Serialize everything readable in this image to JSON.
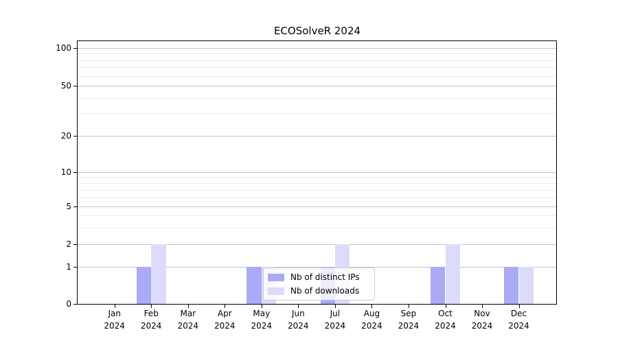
{
  "figure": {
    "background": "#ffffff",
    "axis_color": "#000000",
    "grid_major_color": "#c3c3c3",
    "grid_minor_color": "#e9e9e9",
    "text_color": "#000000"
  },
  "chart_data": {
    "type": "bar",
    "title": "ECOSolveR 2024",
    "categories": [
      "Jan 2024",
      "Feb 2024",
      "Mar 2024",
      "Apr 2024",
      "May 2024",
      "Jun 2024",
      "Jul 2024",
      "Aug 2024",
      "Sep 2024",
      "Oct 2024",
      "Nov 2024",
      "Dec 2024"
    ],
    "series": [
      {
        "name": "Nb of distinct IPs",
        "color": "#aaaaf5",
        "values": [
          0,
          1,
          0,
          0,
          1,
          0,
          1,
          0,
          0,
          1,
          0,
          1
        ]
      },
      {
        "name": "Nb of downloads",
        "color": "#dcdcfa",
        "values": [
          0,
          2,
          0,
          0,
          1,
          0,
          2,
          0,
          0,
          2,
          0,
          1
        ]
      }
    ],
    "xlabel": "",
    "ylabel": "",
    "yscale": "log above 1, linear 0-1",
    "yticks": [
      0,
      1,
      2,
      5,
      10,
      20,
      50,
      100
    ],
    "minor_yticks": [
      3,
      4,
      6,
      7,
      8,
      9,
      30,
      40,
      60,
      70,
      80,
      90
    ],
    "ylim": [
      0,
      114
    ],
    "grid": "horizontal major and minor gridlines",
    "legend_position": "lower center inside plot"
  }
}
